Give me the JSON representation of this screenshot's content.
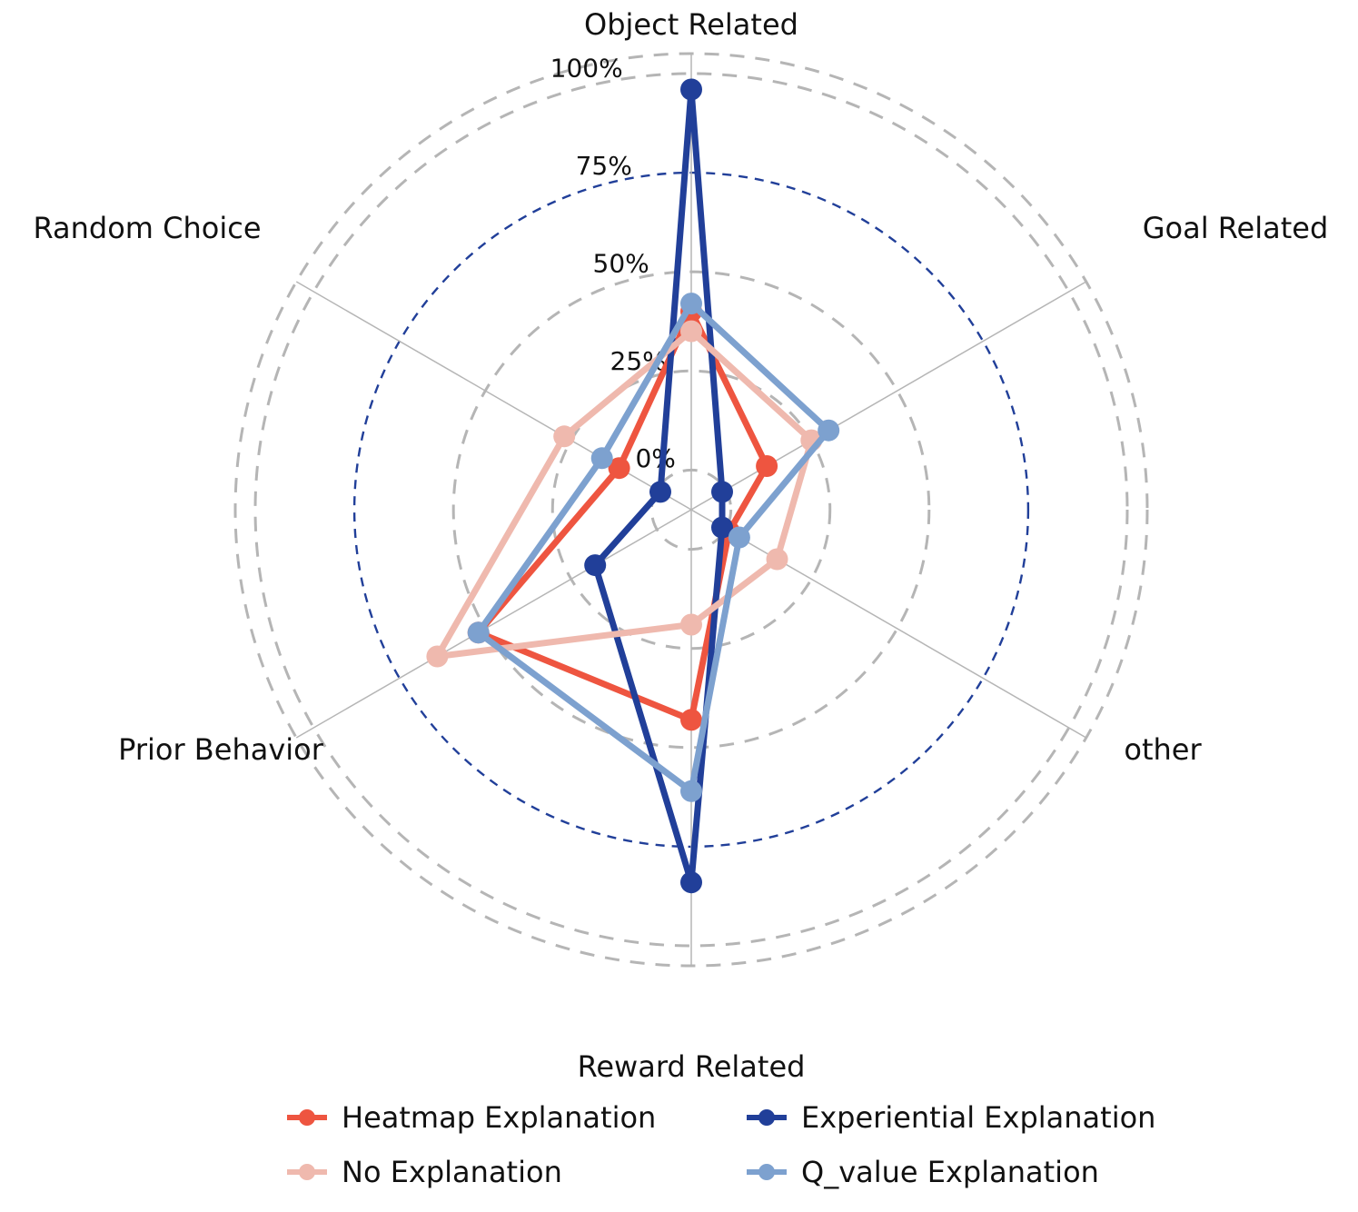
{
  "chart_data": {
    "type": "radar",
    "axes": [
      "Object Related",
      "Goal Related",
      "other",
      "Reward Related",
      "Prior Behavior",
      "Random Choice"
    ],
    "ring_labels": [
      "0%",
      "25%",
      "50%",
      "75%",
      "100%"
    ],
    "rlim": [
      -10,
      100
    ],
    "grid": true,
    "legend_position": "bottom",
    "series": [
      {
        "name": "Heatmap Explanation",
        "color": "#ee5540",
        "values": [
          40,
          12,
          1,
          43,
          52,
          11
        ]
      },
      {
        "name": "Experiential Explanation",
        "color": "#213f99",
        "values": [
          96,
          -1,
          -1,
          84,
          18,
          -1
        ]
      },
      {
        "name": "No Explanation",
        "color": "#efb9ae",
        "values": [
          35,
          25,
          15,
          19,
          64,
          27
        ]
      },
      {
        "name": "Q_value Explanation",
        "color": "#7da1cf",
        "values": [
          42,
          30,
          4,
          61,
          52,
          16
        ]
      }
    ]
  },
  "colors": {
    "grid_ring": "#b5b5b5",
    "highlight_ring": "#213f99",
    "spoke": "#b5b5b5"
  }
}
